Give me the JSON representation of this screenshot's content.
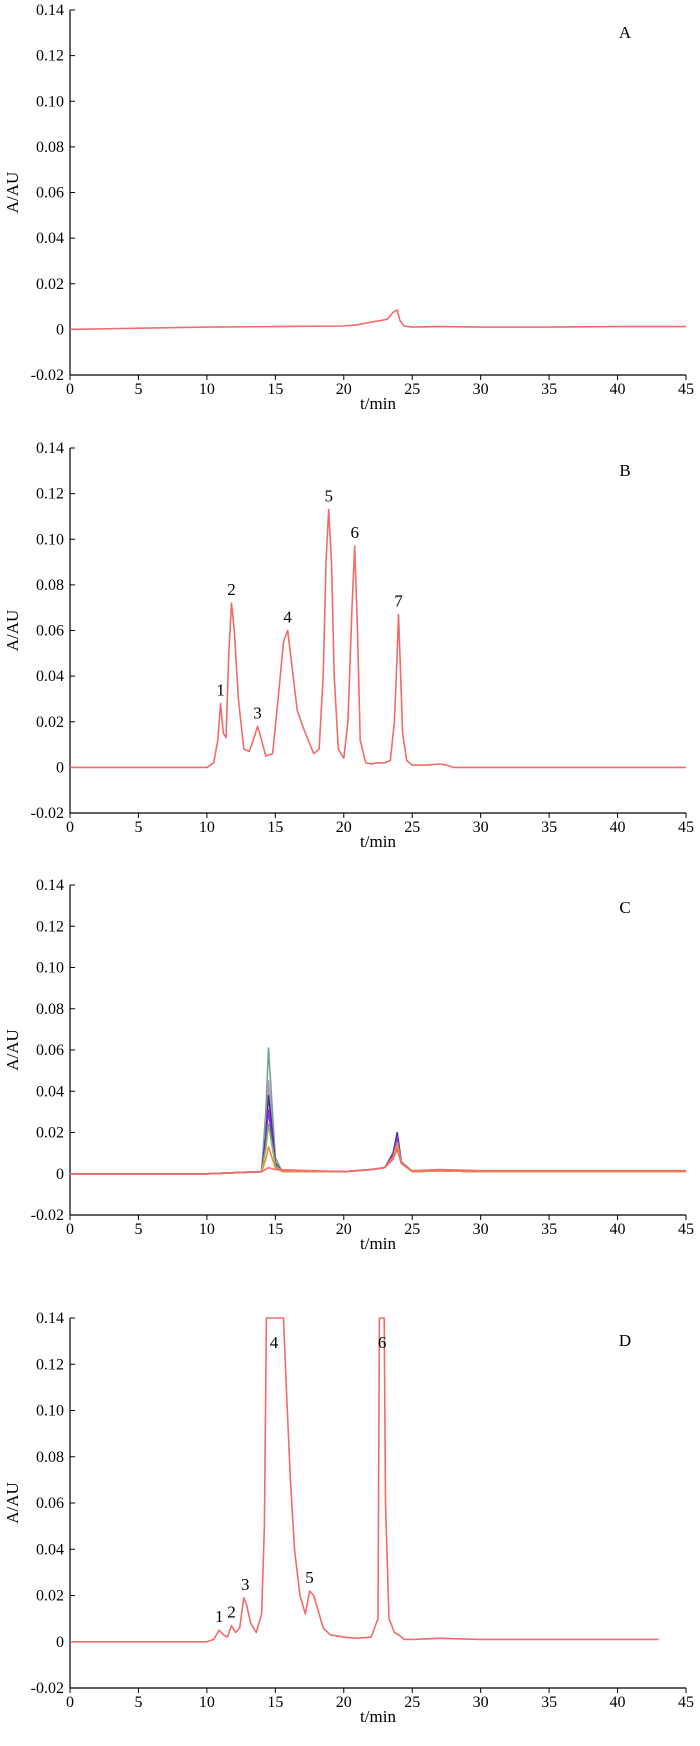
{
  "chart_data": [
    {
      "type": "line",
      "panel_label": "A",
      "xlabel": "t/min",
      "ylabel": "A/AU",
      "xlim": [
        0,
        45
      ],
      "ylim": [
        -0.02,
        0.14
      ],
      "xticks": [
        "0",
        "5",
        "10",
        "15",
        "20",
        "25",
        "30",
        "35",
        "40",
        "45"
      ],
      "yticks": [
        "-0.02",
        "0",
        "0.02",
        "0.04",
        "0.06",
        "0.08",
        "0.10",
        "0.12",
        "0.14"
      ],
      "peaks": [],
      "series": [
        {
          "color": "#f26b6b",
          "x": [
            0,
            5,
            10,
            15,
            20,
            21,
            22,
            22.8,
            23.2,
            23.6,
            23.9,
            24.1,
            24.4,
            25,
            27,
            30,
            35,
            40,
            45
          ],
          "y": [
            0,
            0.0005,
            0.001,
            0.0012,
            0.0015,
            0.002,
            0.0032,
            0.004,
            0.0045,
            0.0075,
            0.0085,
            0.004,
            0.0015,
            0.001,
            0.0012,
            0.001,
            0.001,
            0.0012,
            0.0012
          ]
        }
      ]
    },
    {
      "type": "line",
      "panel_label": "B",
      "xlabel": "t/min",
      "ylabel": "A/AU",
      "xlim": [
        0,
        45
      ],
      "ylim": [
        -0.02,
        0.14
      ],
      "xticks": [
        "0",
        "5",
        "10",
        "15",
        "20",
        "25",
        "30",
        "35",
        "40",
        "45"
      ],
      "yticks": [
        "-0.02",
        "0",
        "0.02",
        "0.04",
        "0.06",
        "0.08",
        "0.10",
        "0.12",
        "0.14"
      ],
      "peaks": [
        {
          "label": "1",
          "x": 11.0,
          "y": 0.028
        },
        {
          "label": "2",
          "x": 11.8,
          "y": 0.072
        },
        {
          "label": "3",
          "x": 13.7,
          "y": 0.018
        },
        {
          "label": "4",
          "x": 15.9,
          "y": 0.06
        },
        {
          "label": "5",
          "x": 18.9,
          "y": 0.113
        },
        {
          "label": "6",
          "x": 20.8,
          "y": 0.097
        },
        {
          "label": "7",
          "x": 24.0,
          "y": 0.067
        }
      ],
      "series": [
        {
          "color": "#f26b6b",
          "x": [
            0,
            5,
            10,
            10.5,
            10.8,
            11.0,
            11.2,
            11.4,
            11.6,
            11.8,
            12.0,
            12.3,
            12.7,
            13.1,
            13.5,
            13.7,
            13.9,
            14.3,
            14.8,
            15.2,
            15.6,
            15.9,
            16.2,
            16.6,
            17.0,
            17.4,
            17.8,
            18.2,
            18.5,
            18.7,
            18.9,
            19.1,
            19.3,
            19.6,
            20.0,
            20.3,
            20.6,
            20.8,
            21.0,
            21.2,
            21.6,
            22,
            22.5,
            23,
            23.4,
            23.7,
            23.9,
            24.0,
            24.1,
            24.3,
            24.6,
            25,
            26,
            27,
            27.5,
            28,
            30,
            35,
            40,
            45
          ],
          "y": [
            0,
            0,
            0,
            0.002,
            0.012,
            0.028,
            0.015,
            0.013,
            0.05,
            0.072,
            0.06,
            0.03,
            0.008,
            0.007,
            0.014,
            0.018,
            0.014,
            0.005,
            0.006,
            0.03,
            0.055,
            0.06,
            0.045,
            0.025,
            0.018,
            0.012,
            0.006,
            0.008,
            0.04,
            0.09,
            0.113,
            0.09,
            0.04,
            0.008,
            0.004,
            0.02,
            0.07,
            0.097,
            0.06,
            0.012,
            0.002,
            0.0015,
            0.002,
            0.002,
            0.003,
            0.02,
            0.05,
            0.067,
            0.05,
            0.015,
            0.003,
            0.001,
            0.001,
            0.0015,
            0.001,
            0,
            0,
            0,
            0,
            0
          ]
        }
      ]
    },
    {
      "type": "line",
      "panel_label": "C",
      "xlabel": "t/min",
      "ylabel": "A/AU",
      "xlim": [
        0,
        45
      ],
      "ylim": [
        -0.02,
        0.14
      ],
      "xticks": [
        "0",
        "5",
        "10",
        "15",
        "20",
        "25",
        "30",
        "35",
        "40",
        "45"
      ],
      "yticks": [
        "-0.02",
        "0",
        "0.02",
        "0.04",
        "0.06",
        "0.08",
        "0.10",
        "0.12",
        "0.14"
      ],
      "peaks": [],
      "series": [
        {
          "color": "#6aa89a",
          "x": [
            0,
            10,
            14,
            14.3,
            14.5,
            14.7,
            15.0,
            15.5,
            20,
            22,
            23,
            23.6,
            23.9,
            24.2,
            25,
            27,
            30,
            45
          ],
          "y": [
            0,
            0,
            0.001,
            0.03,
            0.061,
            0.04,
            0.008,
            0.001,
            0.001,
            0.002,
            0.003,
            0.009,
            0.016,
            0.006,
            0.001,
            0.0015,
            0.001,
            0.001
          ]
        },
        {
          "color": "#c98ab8",
          "x": [
            0,
            10,
            14,
            14.3,
            14.5,
            14.7,
            15.0,
            15.5,
            20,
            22,
            23,
            23.6,
            23.9,
            24.2,
            25,
            27,
            30,
            45
          ],
          "y": [
            0,
            0,
            0.001,
            0.02,
            0.045,
            0.03,
            0.006,
            0.001,
            0.001,
            0.002,
            0.003,
            0.009,
            0.017,
            0.006,
            0.001,
            0.0015,
            0.001,
            0.001
          ]
        },
        {
          "color": "#3b3b8f",
          "x": [
            0,
            10,
            14,
            14.3,
            14.5,
            14.7,
            15.0,
            15.5,
            20,
            22,
            23,
            23.6,
            23.9,
            24.2,
            25,
            27,
            30,
            45
          ],
          "y": [
            0,
            0,
            0.001,
            0.018,
            0.038,
            0.026,
            0.005,
            0.001,
            0.001,
            0.002,
            0.003,
            0.01,
            0.02,
            0.006,
            0.001,
            0.0015,
            0.001,
            0.001
          ]
        },
        {
          "color": "#8a2be2",
          "x": [
            0,
            10,
            14,
            14.3,
            14.5,
            14.7,
            15.0,
            15.5,
            20,
            22,
            23,
            23.6,
            23.9,
            24.2,
            25,
            27,
            30,
            45
          ],
          "y": [
            0,
            0,
            0.001,
            0.015,
            0.031,
            0.02,
            0.004,
            0.001,
            0.001,
            0.002,
            0.003,
            0.009,
            0.018,
            0.006,
            0.001,
            0.0015,
            0.001,
            0.001
          ]
        },
        {
          "color": "#7fbf5f",
          "x": [
            0,
            10,
            14,
            14.3,
            14.5,
            14.7,
            15.0,
            15.5,
            20,
            22,
            23,
            23.6,
            23.9,
            24.2,
            25,
            27,
            30,
            45
          ],
          "y": [
            0,
            0,
            0.001,
            0.012,
            0.024,
            0.016,
            0.004,
            0.001,
            0.001,
            0.002,
            0.003,
            0.008,
            0.015,
            0.006,
            0.001,
            0.0015,
            0.001,
            0.001
          ]
        },
        {
          "color": "#f28c3b",
          "x": [
            0,
            10,
            14,
            14.3,
            14.5,
            14.7,
            15.0,
            15.5,
            20,
            22,
            23,
            23.6,
            23.9,
            24.2,
            25,
            27,
            30,
            45
          ],
          "y": [
            0,
            0,
            0.001,
            0.007,
            0.013,
            0.009,
            0.003,
            0.001,
            0.001,
            0.002,
            0.003,
            0.008,
            0.014,
            0.005,
            0.001,
            0.0015,
            0.001,
            0.001
          ]
        },
        {
          "color": "#f26b6b",
          "x": [
            0,
            10,
            14,
            14.5,
            15,
            20,
            22,
            23,
            23.6,
            23.9,
            24.2,
            25,
            27,
            30,
            45
          ],
          "y": [
            0,
            0,
            0.001,
            0.003,
            0.002,
            0.001,
            0.002,
            0.003,
            0.007,
            0.012,
            0.005,
            0.0015,
            0.002,
            0.0015,
            0.0015
          ]
        }
      ]
    },
    {
      "type": "line",
      "panel_label": "D",
      "xlabel": "t/min",
      "ylabel": "A/AU",
      "xlim": [
        0,
        45
      ],
      "ylim": [
        -0.02,
        0.14
      ],
      "xticks": [
        "0",
        "5",
        "10",
        "15",
        "20",
        "25",
        "30",
        "35",
        "40",
        "45"
      ],
      "yticks": [
        "-0.02",
        "0",
        "0.02",
        "0.04",
        "0.06",
        "0.08",
        "0.10",
        "0.12",
        "0.14"
      ],
      "peaks": [
        {
          "label": "1",
          "x": 10.9,
          "y": 0.005
        },
        {
          "label": "2",
          "x": 11.8,
          "y": 0.007
        },
        {
          "label": "3",
          "x": 12.8,
          "y": 0.019
        },
        {
          "label": "4",
          "x": 14.9,
          "y": 0.14
        },
        {
          "label": "5",
          "x": 17.5,
          "y": 0.022
        },
        {
          "label": "6",
          "x": 22.8,
          "y": 0.14
        }
      ],
      "series": [
        {
          "color": "#f26b6b",
          "x": [
            0,
            5,
            10,
            10.5,
            10.9,
            11.2,
            11.5,
            11.8,
            12.1,
            12.4,
            12.7,
            12.9,
            13.2,
            13.6,
            14.0,
            14.2,
            14.35,
            15.6,
            15.8,
            16.1,
            16.4,
            16.8,
            17.2,
            17.5,
            17.8,
            18.1,
            18.5,
            19.0,
            20,
            21,
            22,
            22.5,
            22.6,
            22.95,
            23.05,
            23.3,
            23.7,
            24.0,
            24.4,
            25,
            27,
            30,
            35,
            40,
            43
          ],
          "y": [
            0,
            0,
            0,
            0.001,
            0.005,
            0.003,
            0.002,
            0.007,
            0.004,
            0.006,
            0.019,
            0.016,
            0.008,
            0.004,
            0.012,
            0.05,
            0.14,
            0.14,
            0.11,
            0.07,
            0.04,
            0.02,
            0.012,
            0.022,
            0.02,
            0.014,
            0.006,
            0.003,
            0.002,
            0.0015,
            0.002,
            0.01,
            0.14,
            0.14,
            0.06,
            0.01,
            0.004,
            0.003,
            0.001,
            0.001,
            0.0015,
            0.001,
            0.001,
            0.001,
            0.001
          ]
        }
      ]
    }
  ]
}
